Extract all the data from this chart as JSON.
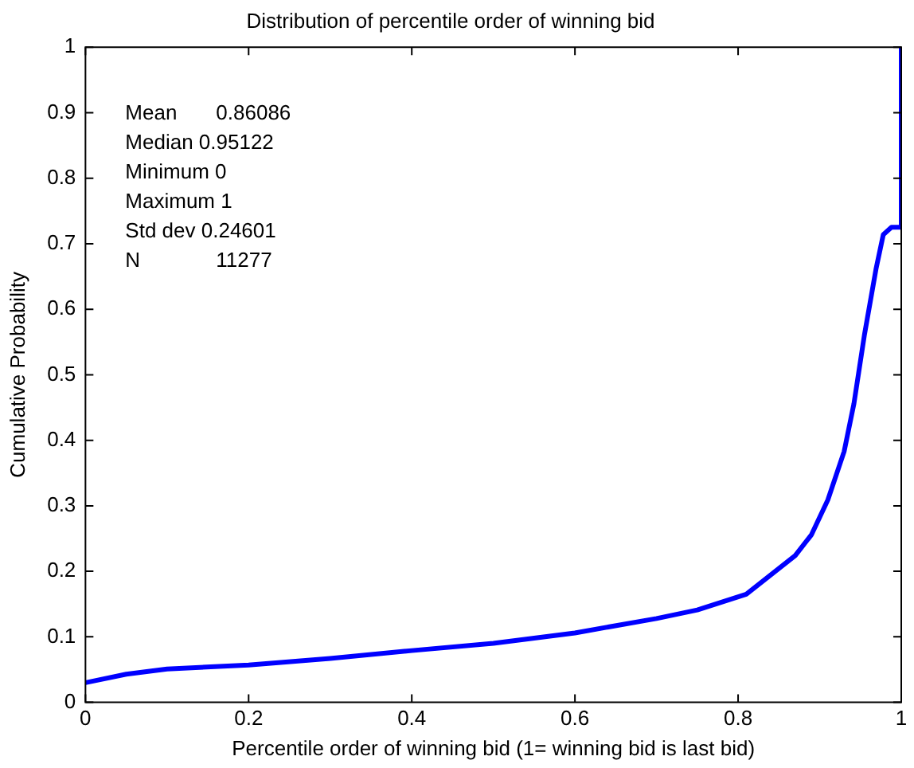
{
  "chart_data": {
    "type": "line",
    "title": "Distribution of percentile order of winning bid",
    "xlabel": "Percentile order of winning bid (1= winning bid is last bid)",
    "ylabel": "Cumulative Probability",
    "x": [
      0,
      0.05,
      0.1,
      0.2,
      0.3,
      0.4,
      0.5,
      0.6,
      0.7,
      0.75,
      0.81,
      0.87,
      0.89,
      0.91,
      0.93,
      0.942,
      0.955,
      0.969,
      0.978,
      0.988,
      1,
      1
    ],
    "series": [
      {
        "color": "#0000ff",
        "values": [
          0.03,
          0.043,
          0.051,
          0.057,
          0.067,
          0.079,
          0.09,
          0.106,
          0.128,
          0.141,
          0.165,
          0.224,
          0.256,
          0.309,
          0.383,
          0.456,
          0.562,
          0.661,
          0.714,
          0.725,
          0.725,
          1
        ]
      }
    ],
    "xlim": [
      0,
      1
    ],
    "ylim": [
      0,
      1
    ],
    "xticks": [
      0,
      0.2,
      0.4,
      0.6,
      0.8,
      1
    ],
    "yticks": [
      0,
      0.1,
      0.2,
      0.3,
      0.4,
      0.5,
      0.6,
      0.7,
      0.8,
      0.9,
      1
    ],
    "grid": false,
    "legend": false,
    "marker": "none",
    "line_style": "solid",
    "annotations": [
      "Mean    0.86086",
      "Median  0.95122",
      "Minimum 0",
      "Maximum 1",
      "Std dev 0.24601",
      "N       11277"
    ]
  }
}
